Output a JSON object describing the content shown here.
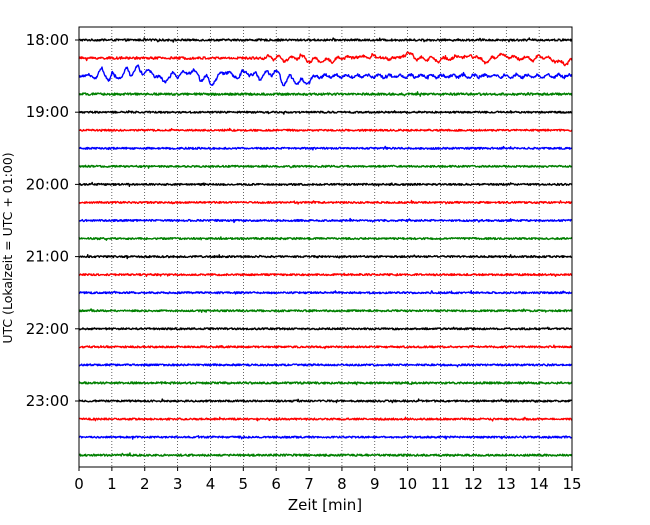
{
  "chart_data": {
    "type": "line",
    "title": "",
    "xlabel": "Zeit  [min]",
    "ylabel": "UTC (Lokalzeit = UTC + 01:00)",
    "xlim": [
      0,
      15
    ],
    "x_ticks": [
      "0",
      "1",
      "2",
      "3",
      "4",
      "5",
      "6",
      "7",
      "8",
      "9",
      "10",
      "11",
      "12",
      "13",
      "14",
      "15"
    ],
    "y_ticks": [
      "18:00",
      "19:00",
      "20:00",
      "21:00",
      "22:00",
      "23:00"
    ],
    "grid": "vertical dotted",
    "trace_interval_minutes": 15,
    "trace_count": 24,
    "color_cycle": [
      "#000000",
      "#ff0000",
      "#0000ff",
      "#008000"
    ],
    "series": [
      {
        "start": "18:00",
        "color": "#000000",
        "amplitude": 1.0,
        "burst_window": null
      },
      {
        "start": "18:15",
        "color": "#ff0000",
        "amplitude": 1.2,
        "burst_window": [
          5.5,
          15
        ],
        "burst_amplitude": 2.2
      },
      {
        "start": "18:30",
        "color": "#0000ff",
        "amplitude": 1.2,
        "burst_window": [
          0.1,
          7.2
        ],
        "burst_amplitude": 4.5
      },
      {
        "start": "18:45",
        "color": "#008000",
        "amplitude": 1.1,
        "burst_window": null
      },
      {
        "start": "19:00",
        "color": "#000000",
        "amplitude": 0.9,
        "burst_window": null
      },
      {
        "start": "19:15",
        "color": "#ff0000",
        "amplitude": 0.9,
        "burst_window": null
      },
      {
        "start": "19:30",
        "color": "#0000ff",
        "amplitude": 0.9,
        "burst_window": null
      },
      {
        "start": "19:45",
        "color": "#008000",
        "amplitude": 0.9,
        "burst_window": null
      },
      {
        "start": "20:00",
        "color": "#000000",
        "amplitude": 0.9,
        "burst_window": null
      },
      {
        "start": "20:15",
        "color": "#ff0000",
        "amplitude": 0.9,
        "burst_window": null
      },
      {
        "start": "20:30",
        "color": "#0000ff",
        "amplitude": 0.9,
        "burst_window": null
      },
      {
        "start": "20:45",
        "color": "#008000",
        "amplitude": 0.9,
        "burst_window": null
      },
      {
        "start": "21:00",
        "color": "#000000",
        "amplitude": 0.9,
        "burst_window": null
      },
      {
        "start": "21:15",
        "color": "#ff0000",
        "amplitude": 0.9,
        "burst_window": null
      },
      {
        "start": "21:30",
        "color": "#0000ff",
        "amplitude": 0.9,
        "burst_window": null
      },
      {
        "start": "21:45",
        "color": "#008000",
        "amplitude": 0.9,
        "burst_window": null
      },
      {
        "start": "22:00",
        "color": "#000000",
        "amplitude": 0.9,
        "burst_window": null
      },
      {
        "start": "22:15",
        "color": "#ff0000",
        "amplitude": 0.9,
        "burst_window": null
      },
      {
        "start": "22:30",
        "color": "#0000ff",
        "amplitude": 0.9,
        "burst_window": null
      },
      {
        "start": "22:45",
        "color": "#008000",
        "amplitude": 1.0,
        "burst_window": null
      },
      {
        "start": "23:00",
        "color": "#000000",
        "amplitude": 0.9,
        "burst_window": null
      },
      {
        "start": "23:15",
        "color": "#ff0000",
        "amplitude": 0.9,
        "burst_window": null
      },
      {
        "start": "23:30",
        "color": "#0000ff",
        "amplitude": 0.9,
        "burst_window": null
      },
      {
        "start": "23:45",
        "color": "#008000",
        "amplitude": 1.0,
        "burst_window": null
      }
    ]
  }
}
